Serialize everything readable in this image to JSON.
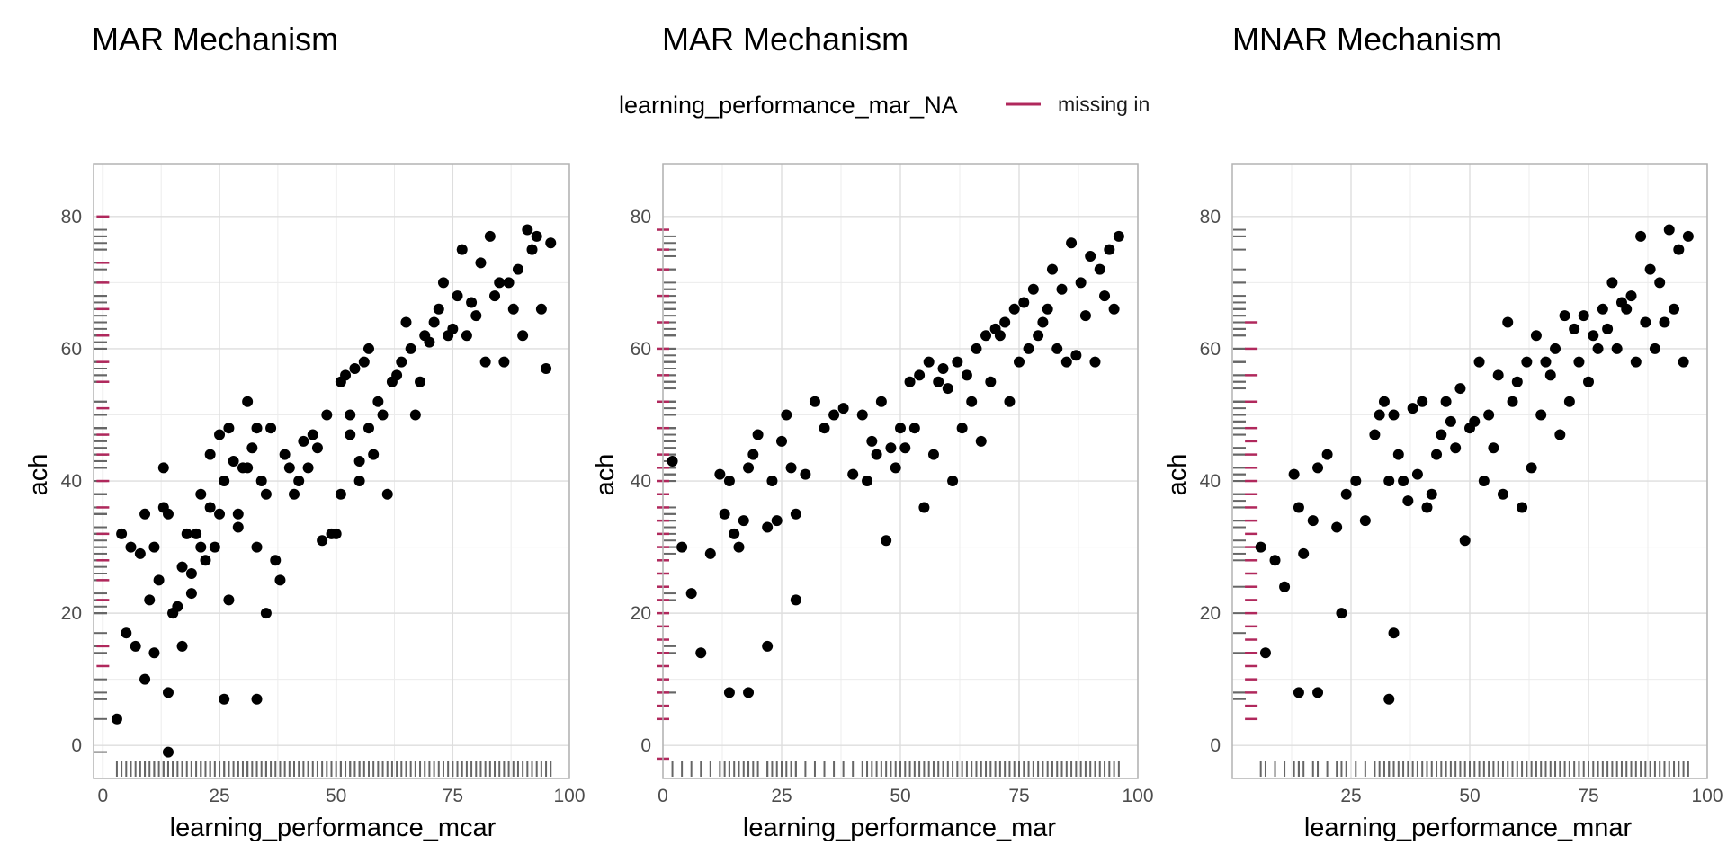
{
  "legend": {
    "title": "learning_performance_mar_NA",
    "entries": [
      {
        "label": "missing in",
        "color": "#B0285C"
      }
    ],
    "position": "top-center"
  },
  "colors": {
    "point": "#000000",
    "rug_observed": "#666666",
    "rug_missing": "#B0285C",
    "panel_border": "#b3b3b3",
    "grid_major": "#dedede",
    "grid_minor": "#ececec"
  },
  "chart_data": [
    {
      "type": "scatter",
      "title": "MAR Mechanism",
      "xlabel": "learning_performance_mcar",
      "ylabel": "ach",
      "xlim": [
        -2,
        100
      ],
      "ylim": [
        -5,
        88
      ],
      "x_ticks": [
        0,
        25,
        50,
        75,
        100
      ],
      "y_ticks": [
        0,
        20,
        40,
        60,
        80
      ],
      "grid": true,
      "x_rug": "complete",
      "missing_band": 0,
      "missing_levels": [
        80,
        73,
        70,
        66,
        62,
        58,
        55,
        51,
        47,
        44,
        40,
        36,
        32,
        28,
        25,
        22,
        15,
        12
      ],
      "x": [
        4,
        6,
        8,
        9,
        10,
        11,
        12,
        13,
        14,
        15,
        16,
        17,
        18,
        19,
        20,
        21,
        22,
        23,
        24,
        25,
        26,
        27,
        28,
        29,
        30,
        31,
        32,
        33,
        34,
        35,
        36,
        38,
        40,
        42,
        44,
        45,
        46,
        48,
        50,
        51,
        52,
        53,
        54,
        55,
        56,
        57,
        58,
        60,
        62,
        64,
        66,
        68,
        70,
        72,
        74,
        76,
        78,
        80,
        82,
        84,
        86,
        88,
        90,
        92,
        94,
        96,
        5,
        7,
        9,
        11,
        13,
        15,
        17,
        19,
        21,
        23,
        25,
        27,
        29,
        31,
        33,
        35,
        37,
        39,
        41,
        43,
        47,
        49,
        51,
        53,
        55,
        57,
        59,
        61,
        63,
        65,
        67,
        69,
        71,
        73,
        75,
        77,
        79,
        81,
        83,
        85,
        87,
        89,
        91,
        93,
        95,
        3,
        14,
        14,
        26,
        33
      ],
      "y": [
        32,
        30,
        29,
        35,
        22,
        14,
        25,
        42,
        35,
        20,
        21,
        27,
        32,
        23,
        32,
        38,
        28,
        44,
        30,
        35,
        40,
        48,
        43,
        33,
        42,
        52,
        45,
        30,
        40,
        38,
        48,
        25,
        42,
        40,
        42,
        47,
        45,
        50,
        32,
        55,
        56,
        50,
        57,
        40,
        58,
        48,
        44,
        50,
        55,
        58,
        60,
        55,
        61,
        66,
        62,
        68,
        62,
        65,
        58,
        68,
        58,
        66,
        62,
        75,
        66,
        76,
        17,
        15,
        10,
        30,
        36,
        20,
        15,
        26,
        30,
        36,
        47,
        22,
        35,
        42,
        48,
        20,
        28,
        44,
        38,
        46,
        31,
        32,
        38,
        47,
        43,
        60,
        52,
        38,
        56,
        64,
        50,
        62,
        64,
        70,
        63,
        75,
        67,
        73,
        77,
        70,
        70,
        72,
        78,
        77,
        57,
        4,
        -1,
        8,
        7,
        7
      ]
    },
    {
      "type": "scatter",
      "title": "MAR Mechanism",
      "xlabel": "learning_performance_mar",
      "ylabel": "ach",
      "xlim": [
        0,
        100
      ],
      "ylim": [
        -5,
        88
      ],
      "x_ticks": [
        0,
        25,
        50,
        75,
        100
      ],
      "y_ticks": [
        0,
        20,
        40,
        60,
        80
      ],
      "grid": true,
      "x_rug": "observed",
      "missing_band": 0,
      "missing_levels": [
        78,
        75,
        72,
        68,
        64,
        60,
        56,
        52,
        48,
        44,
        42,
        40,
        38,
        36,
        34,
        32,
        30,
        28,
        26,
        24,
        22,
        20,
        18,
        16,
        14,
        12,
        10,
        8,
        6,
        4,
        -2
      ],
      "x": [
        2,
        4,
        6,
        8,
        10,
        12,
        13,
        14,
        15,
        16,
        17,
        18,
        19,
        20,
        22,
        23,
        24,
        25,
        26,
        27,
        28,
        30,
        32,
        34,
        36,
        38,
        40,
        42,
        44,
        46,
        48,
        50,
        52,
        54,
        56,
        58,
        60,
        62,
        64,
        66,
        68,
        70,
        72,
        74,
        76,
        78,
        80,
        82,
        84,
        86,
        88,
        90,
        92,
        94,
        96,
        43,
        45,
        47,
        49,
        51,
        53,
        55,
        57,
        59,
        61,
        63,
        65,
        67,
        69,
        71,
        73,
        75,
        77,
        79,
        81,
        83,
        85,
        87,
        89,
        91,
        93,
        95,
        14,
        18,
        28,
        22
      ],
      "y": [
        43,
        30,
        23,
        14,
        29,
        41,
        35,
        40,
        32,
        30,
        34,
        42,
        44,
        47,
        33,
        40,
        34,
        46,
        50,
        42,
        35,
        41,
        52,
        48,
        50,
        51,
        41,
        50,
        46,
        52,
        45,
        48,
        55,
        56,
        58,
        55,
        54,
        58,
        56,
        60,
        62,
        63,
        64,
        66,
        67,
        69,
        64,
        72,
        69,
        76,
        70,
        74,
        72,
        75,
        77,
        40,
        44,
        31,
        42,
        45,
        48,
        36,
        44,
        57,
        40,
        48,
        52,
        46,
        55,
        62,
        52,
        58,
        60,
        62,
        66,
        60,
        58,
        59,
        65,
        58,
        68,
        66,
        8,
        8,
        22,
        15
      ]
    },
    {
      "type": "scatter",
      "title": "MNAR Mechanism",
      "xlabel": "learning_performance_mnar",
      "ylabel": "ach",
      "xlim": [
        0,
        100
      ],
      "ylim": [
        -5,
        88
      ],
      "x_ticks": [
        25,
        50,
        75,
        100
      ],
      "y_ticks": [
        0,
        20,
        40,
        60,
        80
      ],
      "grid": true,
      "x_rug": "observed",
      "missing_band": 4,
      "missing_levels": [
        64,
        60,
        56,
        52,
        48,
        46,
        44,
        42,
        40,
        38,
        36,
        34,
        32,
        30,
        28,
        26,
        24,
        22,
        20,
        18,
        16,
        14,
        12,
        10,
        8,
        6,
        4
      ],
      "x": [
        6,
        7,
        9,
        11,
        13,
        14,
        15,
        17,
        18,
        20,
        22,
        24,
        26,
        28,
        30,
        32,
        34,
        36,
        38,
        40,
        42,
        44,
        46,
        48,
        50,
        52,
        54,
        56,
        58,
        60,
        62,
        64,
        66,
        68,
        70,
        72,
        74,
        76,
        78,
        80,
        82,
        84,
        86,
        88,
        90,
        92,
        94,
        96,
        31,
        33,
        35,
        37,
        39,
        41,
        43,
        45,
        47,
        49,
        51,
        53,
        55,
        57,
        59,
        61,
        63,
        65,
        67,
        69,
        71,
        73,
        75,
        77,
        79,
        81,
        83,
        85,
        87,
        89,
        91,
        93,
        95,
        14,
        18,
        33,
        34,
        23
      ],
      "y": [
        30,
        14,
        28,
        24,
        41,
        36,
        29,
        34,
        42,
        44,
        33,
        38,
        40,
        34,
        47,
        52,
        50,
        40,
        51,
        52,
        38,
        47,
        49,
        54,
        48,
        58,
        50,
        56,
        64,
        55,
        58,
        62,
        58,
        60,
        65,
        63,
        65,
        62,
        66,
        70,
        67,
        68,
        77,
        72,
        70,
        78,
        75,
        77,
        50,
        40,
        44,
        37,
        41,
        36,
        44,
        52,
        45,
        31,
        49,
        40,
        45,
        38,
        52,
        36,
        42,
        50,
        56,
        47,
        52,
        58,
        55,
        60,
        63,
        60,
        66,
        58,
        64,
        60,
        64,
        66,
        58,
        8,
        8,
        7,
        17,
        20
      ]
    }
  ]
}
